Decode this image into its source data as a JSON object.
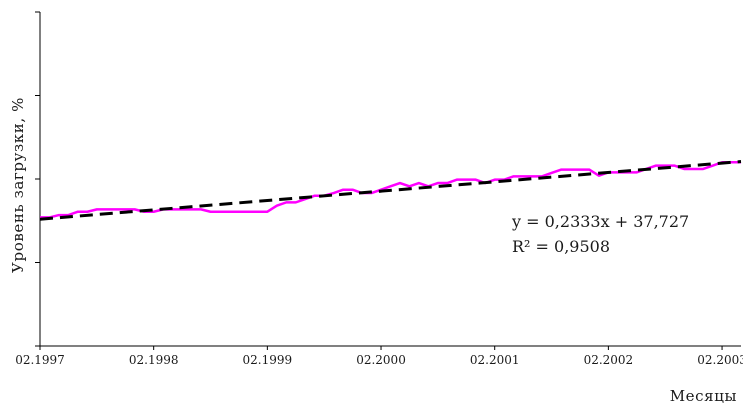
{
  "chart_data": {
    "type": "line",
    "xlabel": "Месяцы",
    "ylabel": "Уровень загрузки, %",
    "x_tick_labels": [
      "02.1997",
      "02.1998",
      "02.1999",
      "02.2000",
      "02.2001",
      "02.2002",
      "02.2003"
    ],
    "n_points": 75,
    "ylim": [
      0,
      100
    ],
    "y_ticks": [
      0,
      25,
      50,
      75,
      100
    ],
    "show_y_tick_labels": false,
    "grid": false,
    "series": [
      {
        "color": "#ff00ff",
        "values": [
          38.5,
          38.5,
          39.2,
          39.2,
          40.2,
          40.2,
          40.9,
          40.9,
          40.9,
          40.9,
          40.9,
          40.2,
          40.2,
          40.9,
          40.9,
          40.9,
          40.9,
          40.9,
          40.2,
          40.2,
          40.2,
          40.2,
          40.2,
          40.2,
          40.2,
          42.0,
          43.0,
          43.0,
          44.0,
          45.0,
          45.0,
          45.8,
          46.8,
          46.8,
          45.8,
          45.8,
          46.8,
          47.8,
          48.8,
          47.8,
          48.8,
          47.8,
          48.8,
          48.8,
          49.8,
          49.8,
          49.8,
          48.8,
          49.8,
          49.8,
          50.8,
          50.8,
          50.8,
          50.8,
          51.8,
          52.8,
          52.8,
          52.8,
          52.8,
          51.0,
          52.0,
          52.0,
          52.0,
          52.0,
          53.0,
          54.0,
          54.0,
          54.0,
          53.0,
          53.0,
          53.0,
          54.0,
          55.0,
          55.0,
          55.0
        ]
      },
      {
        "color": "#000000",
        "trendline": true,
        "slope": 0.2333,
        "intercept": 37.727,
        "x_start": 1,
        "x_end": 75
      }
    ],
    "annotations": [
      "y = 0,2333x + 37,727",
      "R² = 0,9508"
    ]
  }
}
